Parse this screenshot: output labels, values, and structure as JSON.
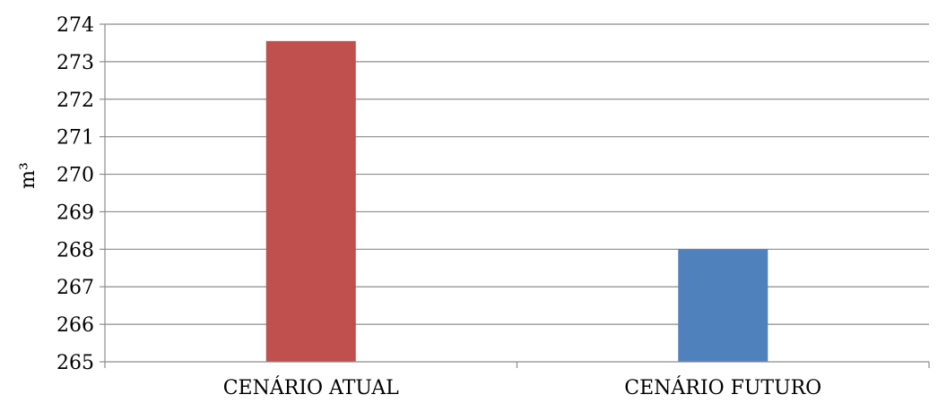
{
  "chart_data": {
    "type": "bar",
    "title": "",
    "xlabel": "",
    "ylabel": "m³",
    "ylim": [
      265,
      274
    ],
    "yticks": [
      265,
      266,
      267,
      268,
      269,
      270,
      271,
      272,
      273,
      274
    ],
    "grid": true,
    "legend": "none",
    "categories": [
      "CENÁRIO ATUAL",
      "CENÁRIO FUTURO"
    ],
    "series": [
      {
        "values": [
          273.55,
          268.0
        ],
        "colors": [
          "#C0504D",
          "#4F81BD"
        ]
      }
    ]
  }
}
